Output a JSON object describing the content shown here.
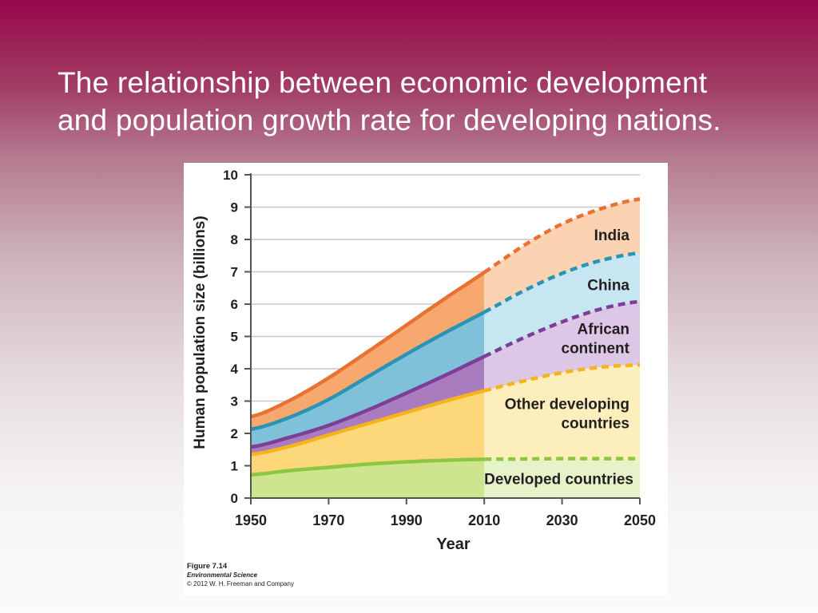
{
  "slide": {
    "title_lines": [
      "The relationship between economic development",
      "and population growth rate for developing nations."
    ]
  },
  "figure": {
    "caption": "Figure 7.14",
    "book": "Environmental Science",
    "copyright": "© 2012 W. H. Freeman and Company"
  },
  "chart_data": {
    "type": "area",
    "stacked": true,
    "xlabel": "Year",
    "ylabel": "Human population size (billions)",
    "xlim": [
      1950,
      2050
    ],
    "ylim": [
      0,
      10
    ],
    "x_ticks": [
      "1950",
      "1970",
      "1990",
      "2010",
      "2030",
      "2050"
    ],
    "y_ticks": [
      "0",
      "1",
      "2",
      "3",
      "4",
      "5",
      "6",
      "7",
      "8",
      "9",
      "10"
    ],
    "grid": true,
    "projection_start": 2010,
    "x": [
      1950,
      1960,
      1970,
      1980,
      1990,
      2000,
      2010,
      2020,
      2030,
      2040,
      2050
    ],
    "series": [
      {
        "name": "Developed countries",
        "label_lines": [
          "Developed countries"
        ],
        "cumulative": [
          0.72,
          0.85,
          0.95,
          1.05,
          1.12,
          1.17,
          1.2,
          1.21,
          1.22,
          1.22,
          1.22
        ],
        "fill": "#cde58f",
        "fill_projected": "#e6f2c8",
        "line": "#8dc63f"
      },
      {
        "name": "Other developing countries",
        "label_lines": [
          "Other developing",
          "countries"
        ],
        "cumulative": [
          1.35,
          1.6,
          1.95,
          2.3,
          2.65,
          3.0,
          3.32,
          3.62,
          3.88,
          4.05,
          4.12
        ],
        "fill": "#fcd87b",
        "fill_projected": "#fdefbc",
        "line": "#f6b31a"
      },
      {
        "name": "African continent",
        "label_lines": [
          "African",
          "continent"
        ],
        "cumulative": [
          1.58,
          1.88,
          2.25,
          2.72,
          3.25,
          3.8,
          4.38,
          4.95,
          5.45,
          5.85,
          6.08
        ],
        "fill": "#a97cc0",
        "fill_projected": "#ddc7e6",
        "line": "#7b3f98"
      },
      {
        "name": "China",
        "label_lines": [
          "China"
        ],
        "cumulative": [
          2.13,
          2.5,
          3.05,
          3.75,
          4.45,
          5.12,
          5.75,
          6.4,
          6.95,
          7.35,
          7.58
        ],
        "fill": "#7fc1d9",
        "fill_projected": "#c6e6f1",
        "line": "#2b93b3"
      },
      {
        "name": "India",
        "label_lines": [
          "India"
        ],
        "cumulative": [
          2.52,
          3.02,
          3.72,
          4.52,
          5.35,
          6.18,
          6.98,
          7.8,
          8.48,
          8.95,
          9.25
        ],
        "fill": "#f6a86e",
        "fill_projected": "#fbd3b2",
        "line": "#e97131"
      }
    ]
  }
}
